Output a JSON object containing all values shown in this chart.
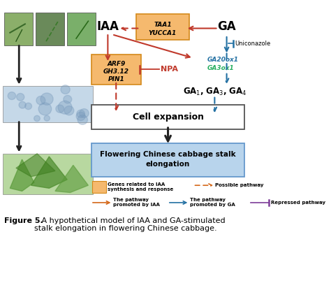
{
  "bg_color": "#ffffff",
  "iaa_label": "IAA",
  "ga_label": "GA",
  "taa1_line1": "TAA1",
  "taa1_line2": "YUCCA1",
  "arf9_line1": "ARF9",
  "arf9_line2": "GH3.12",
  "arf9_line3": "PIN1",
  "npa_label": "NPA",
  "uniconazole_label": "Uniconazole",
  "ga20ox1_label": "GA20ox1",
  "ga3ox1_label": "GA3ox1",
  "ga_products": "GA₁, GA₃, GA₄",
  "cell_expansion_label": "Cell expansion",
  "flowering_label": "Flowering Chinese cabbage stalk\nelongation",
  "legend_box_label": "Genes related to IAA\nsynthesis and response",
  "legend_possible": "Possible pathway",
  "legend_iaa_pathway": "The pathway\npromoted by IAA",
  "legend_ga_pathway": "The pathway\npromoted by GA",
  "legend_repressed": "Repressed pathway",
  "fig_caption_bold": "Figure 5.",
  "fig_caption_rest": "   A hypothetical model of IAA and GA-stimulated\nstalk elongation in flowering Chinese cabbage.",
  "orange_box_face": "#F5B96E",
  "orange_box_edge": "#D4891A",
  "blue_box_face": "#B8D4EC",
  "blue_box_edge": "#6699CC",
  "cell_box_face": "#ffffff",
  "cell_box_edge": "#555555",
  "red": "#C0392B",
  "blue": "#2471A3",
  "green": "#27AE60",
  "purple": "#7D3C98",
  "dark": "#222222",
  "orange_arrow": "#D4681A"
}
